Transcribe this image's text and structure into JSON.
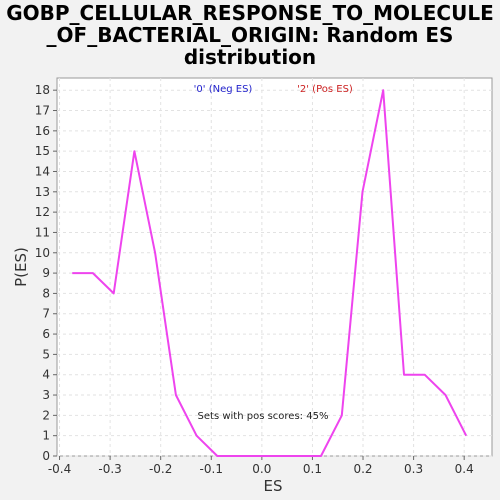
{
  "chart_data": {
    "type": "line",
    "title_lines": [
      "GOBP_CELLULAR_RESPONSE_TO_MOLECULE",
      "_OF_BACTERIAL_ORIGIN: Random ES",
      "distribution"
    ],
    "xlabel": "ES",
    "ylabel": "P(ES)",
    "xlim": [
      -0.405,
      0.455
    ],
    "ylim": [
      0,
      18.6
    ],
    "x_ticks": [
      -0.4,
      -0.3,
      -0.2,
      -0.1,
      0.0,
      0.1,
      0.2,
      0.3,
      0.4
    ],
    "x_tick_labels": [
      "-0.4",
      "-0.3",
      "-0.2",
      "-0.1",
      "0.0",
      "0.1",
      "0.2",
      "0.3",
      "0.4"
    ],
    "y_ticks": [
      0,
      1,
      2,
      3,
      4,
      5,
      6,
      7,
      8,
      9,
      10,
      11,
      12,
      13,
      14,
      15,
      16,
      17,
      18
    ],
    "y_tick_labels": [
      "0",
      "1",
      "2",
      "3",
      "4",
      "5",
      "6",
      "7",
      "8",
      "9",
      "10",
      "11",
      "12",
      "13",
      "14",
      "15",
      "16",
      "17",
      "18"
    ],
    "grid": true,
    "legend": {
      "neg_label": "'0' (Neg ES)",
      "pos_label": "'2' (Pos ES)",
      "neg_color": "#2222cc",
      "pos_color": "#cc2222"
    },
    "annotation": "Sets with pos scores: 45%",
    "series": [
      {
        "color": "#ee44ee",
        "x": [
          -0.375,
          -0.334,
          -0.293,
          -0.252,
          -0.211,
          -0.17,
          -0.129,
          -0.088,
          -0.047,
          -0.006,
          0.035,
          0.076,
          0.117,
          0.158,
          0.199,
          0.24,
          0.281,
          0.322,
          0.363,
          0.404
        ],
        "y": [
          9,
          9,
          8,
          15,
          10,
          3,
          1,
          0,
          0,
          0,
          0,
          0,
          0,
          2,
          13,
          18,
          4,
          4,
          3,
          1
        ]
      }
    ]
  }
}
